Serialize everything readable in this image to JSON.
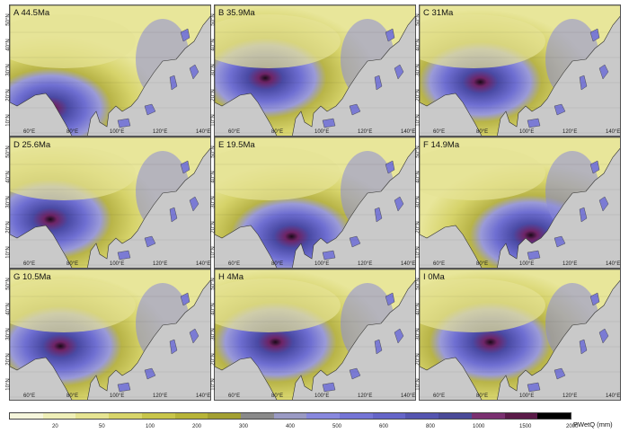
{
  "panels": [
    {
      "label": "A  44.5Ma",
      "peak": [
        0.2,
        0.78
      ],
      "wet": 0.35
    },
    {
      "label": "B  35.9Ma",
      "peak": [
        0.25,
        0.55
      ],
      "wet": 0.55
    },
    {
      "label": "C  31Ma",
      "peak": [
        0.3,
        0.58
      ],
      "wet": 0.5
    },
    {
      "label": "D  25.6Ma",
      "peak": [
        0.2,
        0.62
      ],
      "wet": 0.45
    },
    {
      "label": "E  19.5Ma",
      "peak": [
        0.38,
        0.75
      ],
      "wet": 0.45
    },
    {
      "label": "F  14.9Ma",
      "peak": [
        0.55,
        0.74
      ],
      "wet": 0.48
    },
    {
      "label": "G  10.5Ma",
      "peak": [
        0.25,
        0.58
      ],
      "wet": 0.48
    },
    {
      "label": "H  4Ma",
      "peak": [
        0.3,
        0.55
      ],
      "wet": 0.42
    },
    {
      "label": "I  0Ma",
      "peak": [
        0.35,
        0.55
      ],
      "wet": 0.42
    }
  ],
  "axes": {
    "y_ticks": [
      "50°N",
      "40°N",
      "30°N",
      "20°N",
      "10°N"
    ],
    "x_ticks": [
      "60°E",
      "80°E",
      "100°E",
      "120°E",
      "140°E"
    ]
  },
  "legend": {
    "ticks": [
      "20",
      "50",
      "100",
      "200",
      "300",
      "400",
      "500",
      "600",
      "800",
      "1000",
      "1500",
      "2000"
    ],
    "unit": "PWetQ (mm)",
    "colors": [
      "#f6f6dc",
      "#efefb8",
      "#e6e492",
      "#d8d56a",
      "#c8c54a",
      "#b7b438",
      "#a3a032",
      "#8a8a8a",
      "#9a9ac4",
      "#8888de",
      "#7575d6",
      "#6565c8",
      "#5555b0",
      "#4a4a98",
      "#7a3070",
      "#5a1a48",
      "#000000"
    ]
  }
}
